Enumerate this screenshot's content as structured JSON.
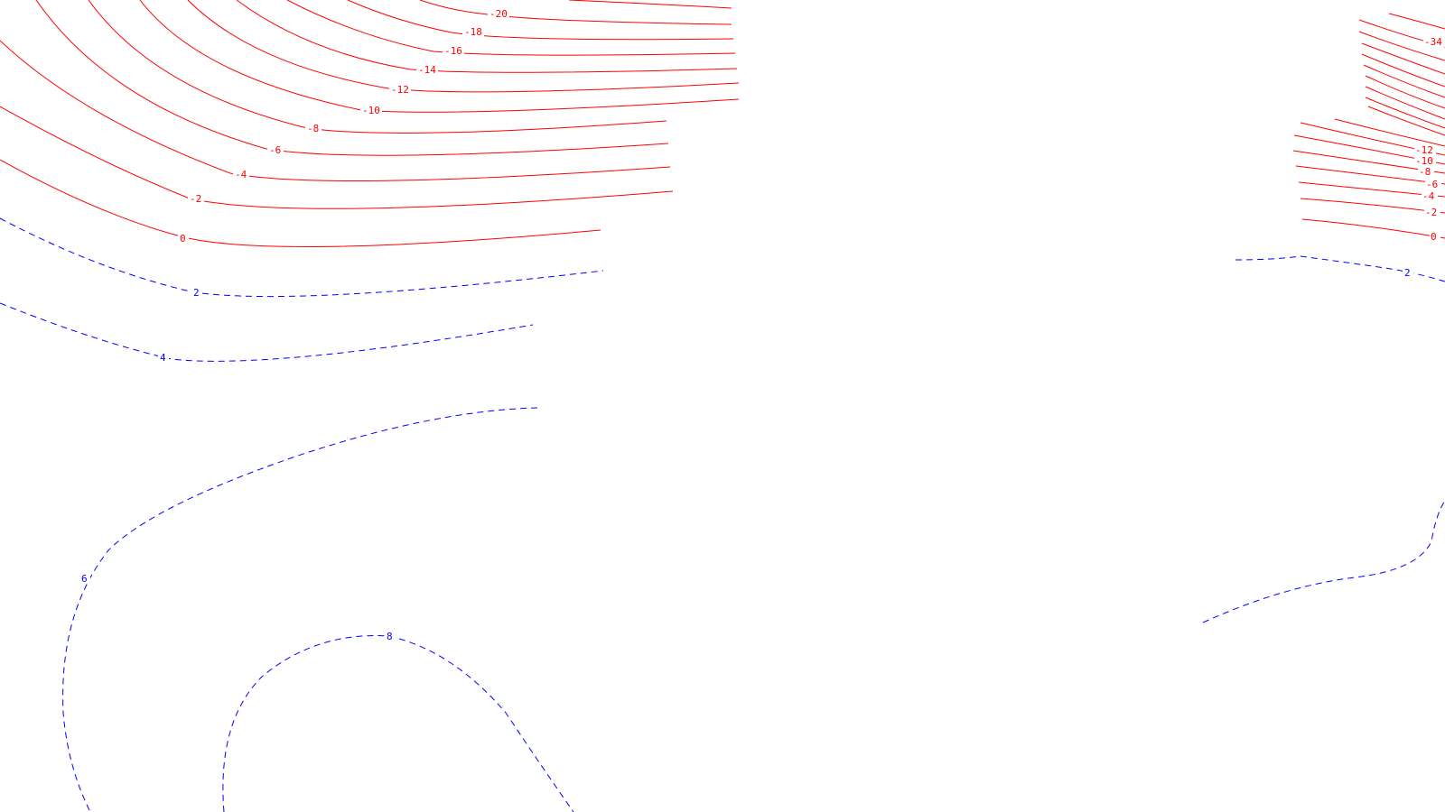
{
  "colors": {
    "background": "#ffffff",
    "negative_contour": "#ff0000",
    "positive_contour": "#0000ff"
  },
  "left_panel": {
    "negative_labels": [
      "-20",
      "-18",
      "-16",
      "-14",
      "-12",
      "-10",
      "-8",
      "-6",
      "-4",
      "-2",
      "0"
    ],
    "positive_labels": [
      "2",
      "4",
      "6",
      "8"
    ]
  },
  "right_panel": {
    "negative_labels": [
      "-34",
      "-12",
      "-10",
      "-8",
      "-6",
      "-4",
      "-2",
      "0"
    ],
    "positive_labels": [
      "2"
    ]
  }
}
